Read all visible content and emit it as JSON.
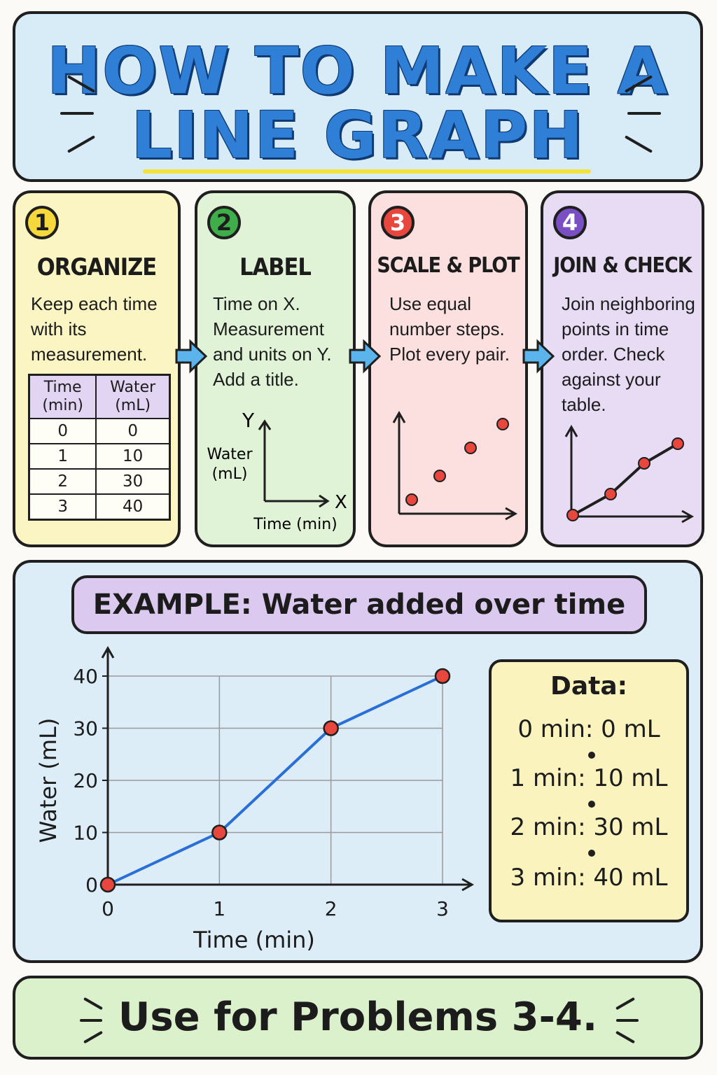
{
  "title": {
    "line1": "HOW TO MAKE A",
    "line2": "LINE GRAPH"
  },
  "steps": [
    {
      "number": "1",
      "title": "ORGANIZE",
      "text_lines": [
        "Keep each time",
        "with its",
        "measurement."
      ],
      "color": "#f5d93c"
    },
    {
      "number": "2",
      "title": "LABEL",
      "text_lines": [
        "Time on X.",
        "Measurement",
        "and units on Y.",
        "Add a title."
      ],
      "color": "#3fae4a"
    },
    {
      "number": "3",
      "title": "SCALE & PLOT",
      "text_lines": [
        "Use equal",
        "number steps.",
        "Plot every pair."
      ],
      "color": "#e8473d"
    },
    {
      "number": "4",
      "title": "JOIN & CHECK",
      "text_lines": [
        "Join neighboring",
        "points in time",
        "order. Check",
        "against your",
        "table."
      ],
      "color": "#7a4fc4"
    }
  ],
  "table": {
    "headers": [
      "Time (min)",
      "Water (mL)"
    ],
    "rows": [
      [
        "0",
        "0"
      ],
      [
        "1",
        "10"
      ],
      [
        "2",
        "30"
      ],
      [
        "3",
        "40"
      ]
    ]
  },
  "label_sketch": {
    "y": "Y",
    "x": "X",
    "ylabel_line1": "Water",
    "ylabel_line2": "(mL)",
    "xlabel": "Time (min)"
  },
  "example": {
    "banner": "EXAMPLE: Water added over time",
    "data_box": {
      "title": "Data:",
      "lines": [
        "0 min: 0 mL",
        "1 min: 10 mL",
        "2 min: 30 mL",
        "3 min: 40 mL"
      ]
    }
  },
  "chart_data": {
    "type": "line",
    "x": [
      0,
      1,
      2,
      3
    ],
    "values": [
      0,
      10,
      30,
      40
    ],
    "xticks": [
      "0",
      "1",
      "2",
      "3"
    ],
    "yticks": [
      "0",
      "10",
      "20",
      "30",
      "40"
    ],
    "xlabel": "Time (min)",
    "ylabel": "Water (mL)",
    "xlim": [
      0,
      3
    ],
    "ylim": [
      0,
      40
    ],
    "grid": true,
    "line_color": "#2a6fd6",
    "marker_color": "#e8473d"
  },
  "footer": {
    "text": "Use for Problems 3-4."
  }
}
